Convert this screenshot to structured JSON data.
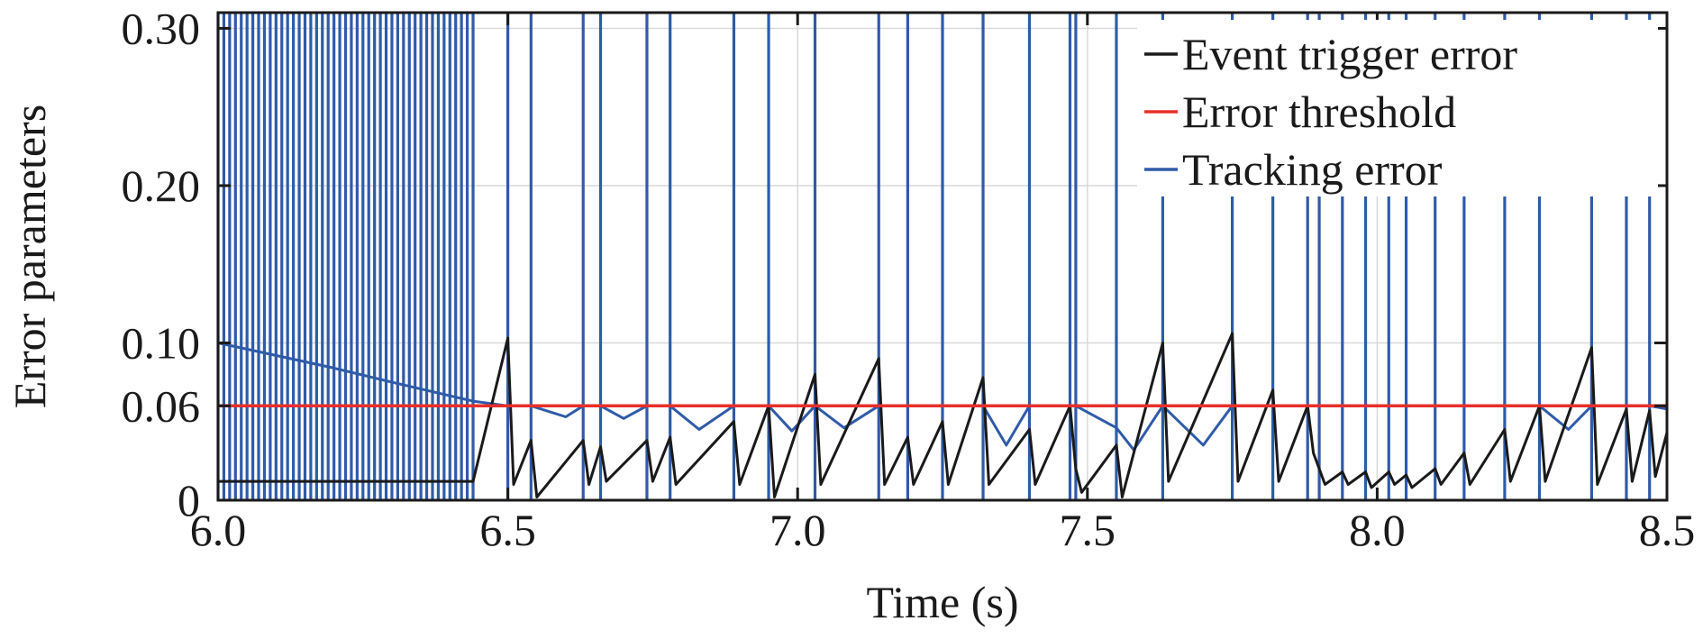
{
  "chart_data": {
    "type": "line",
    "xlabel": "Time (s)",
    "ylabel": "Error parameters",
    "xlim": [
      6.0,
      8.5
    ],
    "ylim": [
      0,
      0.31
    ],
    "x_ticks": [
      "6.0",
      "6.5",
      "7.0",
      "7.5",
      "8.0",
      "8.5"
    ],
    "y_ticks": [
      "0",
      "0.06",
      "0.10",
      "0.20",
      "0.30"
    ],
    "grid": true,
    "legend_position": "top-right",
    "trigger_times": [
      6.0,
      6.01,
      6.02,
      6.03,
      6.04,
      6.05,
      6.06,
      6.07,
      6.08,
      6.09,
      6.1,
      6.11,
      6.12,
      6.13,
      6.14,
      6.15,
      6.16,
      6.17,
      6.18,
      6.19,
      6.2,
      6.21,
      6.22,
      6.23,
      6.24,
      6.25,
      6.26,
      6.27,
      6.28,
      6.29,
      6.3,
      6.31,
      6.32,
      6.33,
      6.34,
      6.35,
      6.36,
      6.37,
      6.38,
      6.39,
      6.4,
      6.41,
      6.42,
      6.43,
      6.44,
      6.5,
      6.54,
      6.63,
      6.66,
      6.74,
      6.78,
      6.89,
      6.95,
      7.03,
      7.14,
      7.19,
      7.25,
      7.32,
      7.4,
      7.47,
      7.48,
      7.55,
      7.63,
      7.75,
      7.82,
      7.88,
      7.9,
      7.94,
      7.98,
      8.02,
      8.05,
      8.1,
      8.15,
      8.22,
      8.28,
      8.37,
      8.43,
      8.47
    ],
    "series": [
      {
        "name": "Event trigger error",
        "color": "#1a1a1a",
        "x": [
          6.0,
          6.44,
          6.5,
          6.51,
          6.54,
          6.55,
          6.63,
          6.64,
          6.66,
          6.67,
          6.74,
          6.75,
          6.78,
          6.79,
          6.89,
          6.9,
          6.95,
          6.96,
          7.03,
          7.04,
          7.14,
          7.15,
          7.19,
          7.2,
          7.25,
          7.26,
          7.32,
          7.33,
          7.4,
          7.41,
          7.47,
          7.48,
          7.49,
          7.55,
          7.56,
          7.63,
          7.64,
          7.75,
          7.76,
          7.82,
          7.83,
          7.88,
          7.89,
          7.9,
          7.91,
          7.94,
          7.95,
          7.98,
          7.99,
          8.02,
          8.03,
          8.05,
          8.06,
          8.1,
          8.11,
          8.15,
          8.16,
          8.22,
          8.23,
          8.28,
          8.29,
          8.37,
          8.38,
          8.43,
          8.44,
          8.47,
          8.48,
          8.5
        ],
        "y": [
          0.012,
          0.012,
          0.103,
          0.01,
          0.038,
          0.002,
          0.038,
          0.01,
          0.034,
          0.012,
          0.038,
          0.012,
          0.04,
          0.01,
          0.05,
          0.01,
          0.06,
          0.002,
          0.08,
          0.01,
          0.09,
          0.01,
          0.04,
          0.01,
          0.05,
          0.01,
          0.078,
          0.01,
          0.045,
          0.01,
          0.06,
          0.02,
          0.005,
          0.035,
          0.002,
          0.1,
          0.012,
          0.106,
          0.012,
          0.07,
          0.012,
          0.06,
          0.03,
          0.02,
          0.01,
          0.018,
          0.01,
          0.018,
          0.008,
          0.018,
          0.01,
          0.016,
          0.008,
          0.02,
          0.01,
          0.03,
          0.01,
          0.045,
          0.012,
          0.06,
          0.012,
          0.097,
          0.01,
          0.058,
          0.012,
          0.057,
          0.015,
          0.043
        ]
      },
      {
        "name": "Error threshold",
        "color": "#e8302a",
        "x": [
          6.0,
          8.5
        ],
        "y": [
          0.06,
          0.06
        ]
      },
      {
        "name": "Tracking error",
        "color": "#2f5ba8",
        "x": [
          6.0,
          6.1,
          6.2,
          6.3,
          6.44,
          6.5,
          6.52,
          6.54,
          6.6,
          6.63,
          6.66,
          6.7,
          6.74,
          6.78,
          6.83,
          6.89,
          6.95,
          6.99,
          7.03,
          7.08,
          7.14,
          7.19,
          7.25,
          7.32,
          7.36,
          7.4,
          7.47,
          7.48,
          7.55,
          7.58,
          7.63,
          7.7,
          7.75,
          7.82,
          7.88,
          7.9,
          7.94,
          7.98,
          8.02,
          8.05,
          8.1,
          8.15,
          8.22,
          8.28,
          8.33,
          8.37,
          8.43,
          8.47,
          8.5
        ],
        "y": [
          0.1,
          0.092,
          0.084,
          0.075,
          0.063,
          0.06,
          0.06,
          0.06,
          0.053,
          0.06,
          0.06,
          0.052,
          0.06,
          0.06,
          0.045,
          0.06,
          0.06,
          0.044,
          0.06,
          0.046,
          0.06,
          0.06,
          0.06,
          0.06,
          0.035,
          0.06,
          0.06,
          0.06,
          0.046,
          0.032,
          0.06,
          0.035,
          0.06,
          0.06,
          0.06,
          0.06,
          0.06,
          0.06,
          0.06,
          0.06,
          0.06,
          0.06,
          0.06,
          0.06,
          0.045,
          0.06,
          0.06,
          0.06,
          0.058
        ]
      }
    ]
  }
}
